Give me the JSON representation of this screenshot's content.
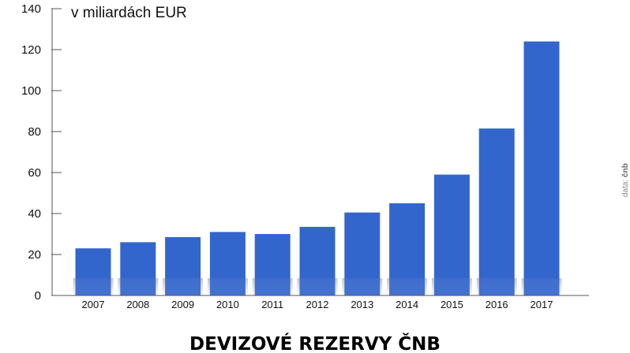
{
  "chart_data": {
    "type": "bar",
    "title": "DEVIZOVÉ REZERVY ČNB",
    "ylabel": "v miliardách EUR",
    "xlabel": "",
    "categories": [
      "2007",
      "2008",
      "2009",
      "2010",
      "2011",
      "2012",
      "2013",
      "2014",
      "2015",
      "2016",
      "2017"
    ],
    "values": [
      23,
      26,
      28.5,
      31,
      30,
      33.5,
      40.5,
      45,
      59,
      81.5,
      124
    ],
    "ylim": [
      0,
      140
    ],
    "yticks": [
      0,
      20,
      40,
      60,
      80,
      100,
      120,
      140
    ],
    "grid": false,
    "bar_color": "#3366cc",
    "source_prefix": "data: ",
    "source_name": "čnb"
  }
}
